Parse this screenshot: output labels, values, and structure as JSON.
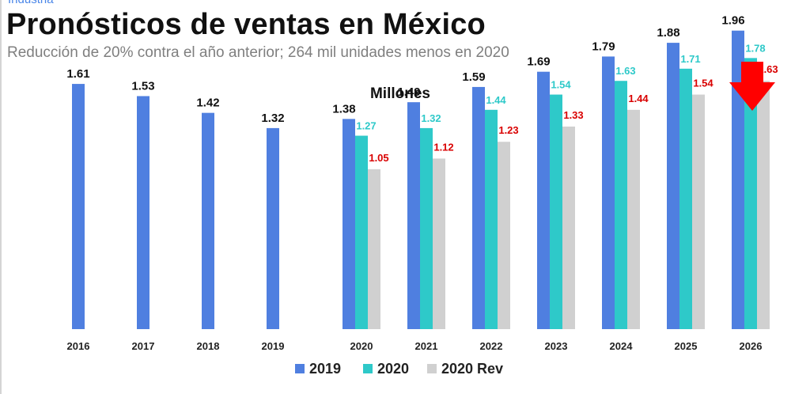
{
  "header": {
    "kicker": "Industria",
    "title": "Pronósticos de ventas en México",
    "subtitle": "Reducción de 20% contra el año anterior; 264 mil unidades menos en 2020"
  },
  "colors": {
    "s2019": "#4f7fe0",
    "s2020": "#2ec9c9",
    "s2020rev": "#d0d0d0",
    "label2019": "#111111",
    "label2020": "#2ec9c9",
    "label2020rev": "#d90000",
    "arrow": "#ff0000"
  },
  "icons": {
    "arrow": "red-down-arrow-icon"
  },
  "chart_data": {
    "type": "bar",
    "title": "Millones",
    "categories": [
      "2016",
      "2017",
      "2018",
      "2019",
      "2020",
      "2021",
      "2022",
      "2023",
      "2024",
      "2025",
      "2026"
    ],
    "series": [
      {
        "name": "2019",
        "values": [
          1.61,
          1.53,
          1.42,
          1.32,
          1.38,
          1.49,
          1.59,
          1.69,
          1.79,
          1.88,
          1.96
        ],
        "labels": [
          "1.61",
          "1.53",
          "1.42",
          "1.32",
          "1.38",
          "1.49",
          "1.59",
          "1.69",
          "1.79",
          "1.88",
          "1.96"
        ]
      },
      {
        "name": "2020",
        "values": [
          null,
          null,
          null,
          null,
          1.27,
          1.32,
          1.44,
          1.54,
          1.63,
          1.71,
          1.78
        ],
        "labels": [
          "",
          "",
          "",
          "",
          "1.27",
          "1.32",
          "1.44",
          "1.54",
          "1.63",
          "1.71",
          "1.78"
        ]
      },
      {
        "name": "2020 Rev",
        "values": [
          null,
          null,
          null,
          null,
          1.05,
          1.12,
          1.23,
          1.33,
          1.44,
          1.54,
          1.63
        ],
        "labels": [
          "",
          "",
          "",
          "",
          "1.05",
          "1.12",
          "1.23",
          "1.33",
          "1.44",
          "1.54",
          "1.63"
        ]
      }
    ],
    "ylim": [
      0,
      2.0
    ],
    "grid": false,
    "legend": "bottom"
  }
}
